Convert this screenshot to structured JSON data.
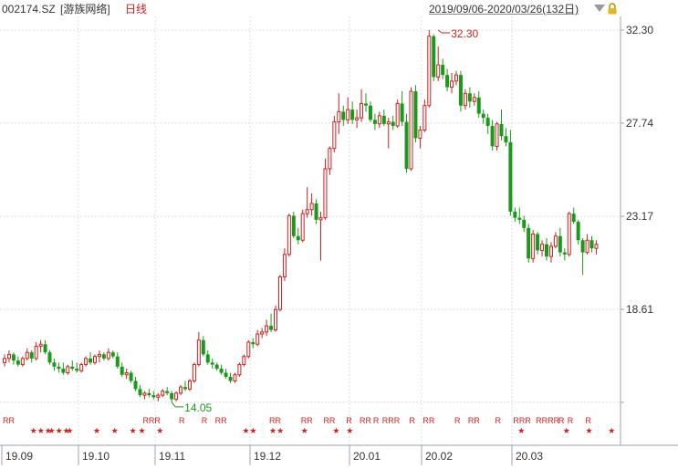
{
  "header": {
    "code": "002174.SZ",
    "name": "[游族网络]",
    "period": "日线",
    "range": "2019/09/06-2020/03/26(132日)",
    "icons": [
      "dropdown-triangle-icon",
      "lock-icon"
    ]
  },
  "chart_data": {
    "type": "candlestick",
    "ytick_labels": [
      "32.30",
      "27.74",
      "23.17",
      "18.61"
    ],
    "ylim": [
      13.2,
      33.0
    ],
    "grid": true,
    "xtick_labels": [
      {
        "label": "19.09",
        "index": 0
      },
      {
        "label": "19.10",
        "index": 17
      },
      {
        "label": "19.11",
        "index": 34
      },
      {
        "label": "19.12",
        "index": 55
      },
      {
        "label": "20.01",
        "index": 77
      },
      {
        "label": "20.02",
        "index": 93
      },
      {
        "label": "20.03",
        "index": 113
      }
    ],
    "annotations": [
      {
        "text": "32.30",
        "index": 96,
        "value": 32.3,
        "kind": "high",
        "color": "#d02020"
      },
      {
        "text": "14.05",
        "index": 37,
        "value": 14.05,
        "kind": "low",
        "color": "#1a9a1a"
      }
    ],
    "colors": {
      "up": "#d02020",
      "down": "#1a9a1a",
      "grid": "#d8dde4",
      "axis_text": "#333333",
      "marker": "#d02020"
    },
    "ohlc": [
      [
        16.0,
        16.4,
        15.8,
        16.2
      ],
      [
        16.2,
        16.6,
        16.0,
        16.4
      ],
      [
        16.4,
        16.5,
        15.9,
        16.1
      ],
      [
        16.1,
        16.3,
        15.8,
        15.9
      ],
      [
        15.9,
        16.3,
        15.8,
        16.2
      ],
      [
        16.2,
        16.7,
        16.1,
        16.5
      ],
      [
        16.5,
        16.6,
        16.0,
        16.2
      ],
      [
        16.2,
        17.0,
        16.1,
        16.8
      ],
      [
        16.8,
        17.1,
        16.5,
        16.9
      ],
      [
        16.9,
        17.1,
        16.4,
        16.5
      ],
      [
        16.5,
        16.6,
        15.9,
        16.0
      ],
      [
        16.0,
        16.2,
        15.6,
        15.8
      ],
      [
        15.8,
        16.0,
        15.5,
        15.7
      ],
      [
        15.7,
        16.0,
        15.4,
        15.5
      ],
      [
        15.5,
        15.9,
        15.4,
        15.8
      ],
      [
        15.8,
        16.1,
        15.6,
        15.7
      ],
      [
        15.7,
        16.0,
        15.5,
        15.6
      ],
      [
        15.6,
        16.0,
        15.5,
        15.9
      ],
      [
        15.9,
        16.3,
        15.8,
        16.2
      ],
      [
        16.2,
        16.5,
        15.9,
        16.0
      ],
      [
        16.0,
        16.4,
        15.9,
        16.3
      ],
      [
        16.3,
        16.6,
        16.0,
        16.4
      ],
      [
        16.4,
        16.5,
        16.1,
        16.2
      ],
      [
        16.2,
        16.7,
        16.1,
        16.5
      ],
      [
        16.5,
        16.6,
        16.2,
        16.3
      ],
      [
        16.3,
        16.5,
        15.7,
        15.8
      ],
      [
        15.8,
        16.0,
        15.3,
        15.4
      ],
      [
        15.4,
        15.7,
        15.2,
        15.5
      ],
      [
        15.5,
        15.6,
        15.0,
        15.1
      ],
      [
        15.1,
        15.3,
        14.6,
        14.7
      ],
      [
        14.7,
        14.9,
        14.3,
        14.4
      ],
      [
        14.4,
        14.6,
        14.2,
        14.5
      ],
      [
        14.5,
        14.7,
        14.3,
        14.4
      ],
      [
        14.4,
        14.6,
        14.2,
        14.3
      ],
      [
        14.3,
        14.5,
        14.1,
        14.4
      ],
      [
        14.4,
        14.7,
        14.3,
        14.6
      ],
      [
        14.6,
        14.8,
        14.4,
        14.5
      ],
      [
        14.5,
        14.6,
        14.05,
        14.2
      ],
      [
        14.2,
        14.6,
        14.1,
        14.5
      ],
      [
        14.5,
        14.9,
        14.4,
        14.8
      ],
      [
        14.8,
        15.1,
        14.6,
        14.7
      ],
      [
        14.7,
        15.2,
        14.6,
        15.1
      ],
      [
        15.1,
        16.0,
        15.0,
        15.9
      ],
      [
        15.9,
        17.5,
        15.8,
        17.1
      ],
      [
        17.1,
        17.3,
        16.3,
        16.4
      ],
      [
        16.4,
        16.6,
        15.9,
        16.0
      ],
      [
        16.0,
        16.2,
        15.7,
        15.9
      ],
      [
        15.9,
        16.0,
        15.6,
        15.7
      ],
      [
        15.7,
        15.9,
        15.4,
        15.5
      ],
      [
        15.5,
        15.7,
        15.2,
        15.3
      ],
      [
        15.3,
        15.5,
        15.0,
        15.1
      ],
      [
        15.1,
        15.5,
        15.0,
        15.4
      ],
      [
        15.4,
        16.0,
        15.3,
        15.9
      ],
      [
        15.9,
        16.4,
        15.8,
        16.3
      ],
      [
        16.3,
        17.1,
        16.2,
        17.0
      ],
      [
        17.0,
        17.2,
        16.7,
        16.9
      ],
      [
        16.9,
        17.6,
        16.8,
        17.4
      ],
      [
        17.4,
        17.7,
        17.2,
        17.5
      ],
      [
        17.5,
        18.1,
        17.3,
        17.8
      ],
      [
        17.8,
        18.4,
        17.5,
        17.6
      ],
      [
        17.6,
        18.8,
        17.5,
        18.6
      ],
      [
        18.6,
        20.3,
        18.5,
        20.2
      ],
      [
        20.2,
        21.6,
        20.0,
        21.3
      ],
      [
        21.3,
        23.3,
        21.2,
        23.2
      ],
      [
        23.2,
        23.4,
        22.1,
        22.2
      ],
      [
        22.2,
        22.6,
        21.8,
        22.0
      ],
      [
        22.0,
        23.5,
        21.9,
        23.3
      ],
      [
        23.3,
        24.6,
        23.1,
        23.5
      ],
      [
        23.5,
        24.3,
        23.2,
        23.8
      ],
      [
        23.8,
        24.0,
        22.8,
        23.0
      ],
      [
        23.0,
        23.4,
        21.0,
        23.1
      ],
      [
        23.1,
        26.0,
        23.0,
        25.5
      ],
      [
        25.5,
        26.6,
        25.2,
        26.5
      ],
      [
        26.5,
        28.1,
        26.3,
        27.8
      ],
      [
        27.8,
        29.2,
        27.2,
        28.3
      ],
      [
        28.3,
        28.6,
        27.6,
        27.9
      ],
      [
        27.9,
        29.0,
        27.7,
        28.4
      ],
      [
        28.4,
        28.8,
        27.7,
        27.9
      ],
      [
        27.9,
        28.4,
        27.5,
        28.0
      ],
      [
        28.0,
        29.4,
        27.8,
        28.7
      ],
      [
        28.7,
        29.2,
        28.3,
        28.6
      ],
      [
        28.6,
        28.8,
        27.8,
        27.9
      ],
      [
        27.9,
        28.2,
        27.4,
        27.7
      ],
      [
        27.7,
        28.3,
        27.5,
        28.1
      ],
      [
        28.1,
        28.4,
        27.6,
        27.7
      ],
      [
        27.7,
        28.0,
        26.5,
        27.8
      ],
      [
        27.8,
        28.1,
        27.4,
        27.6
      ],
      [
        27.6,
        28.9,
        27.5,
        28.7
      ],
      [
        28.7,
        29.3,
        27.6,
        27.8
      ],
      [
        27.8,
        28.2,
        25.3,
        25.5
      ],
      [
        25.5,
        29.5,
        25.4,
        29.3
      ],
      [
        29.3,
        29.6,
        26.8,
        27.0
      ],
      [
        27.0,
        27.6,
        26.5,
        27.4
      ],
      [
        27.4,
        28.9,
        27.3,
        28.6
      ],
      [
        28.6,
        32.3,
        28.5,
        32.0
      ],
      [
        32.0,
        32.1,
        29.8,
        30.0
      ],
      [
        30.0,
        31.5,
        29.8,
        30.6
      ],
      [
        30.6,
        30.9,
        29.9,
        30.1
      ],
      [
        30.1,
        30.4,
        29.3,
        29.5
      ],
      [
        29.5,
        30.2,
        29.2,
        29.8
      ],
      [
        29.8,
        30.3,
        29.6,
        30.1
      ],
      [
        30.1,
        30.3,
        28.3,
        28.6
      ],
      [
        28.6,
        29.4,
        28.4,
        29.2
      ],
      [
        29.2,
        29.5,
        28.5,
        28.8
      ],
      [
        28.8,
        29.2,
        28.6,
        29.0
      ],
      [
        29.0,
        29.3,
        28.0,
        28.2
      ],
      [
        28.2,
        28.4,
        27.7,
        28.0
      ],
      [
        28.0,
        28.2,
        27.2,
        27.6
      ],
      [
        27.6,
        27.9,
        26.4,
        26.6
      ],
      [
        26.6,
        27.8,
        26.4,
        27.7
      ],
      [
        27.7,
        28.4,
        26.9,
        27.1
      ],
      [
        27.1,
        27.5,
        26.6,
        26.8
      ],
      [
        26.8,
        27.4,
        23.2,
        23.4
      ],
      [
        23.4,
        23.6,
        22.9,
        23.1
      ],
      [
        23.1,
        23.6,
        22.8,
        23.0
      ],
      [
        23.0,
        23.2,
        22.4,
        22.6
      ],
      [
        22.6,
        22.8,
        20.9,
        21.1
      ],
      [
        21.1,
        22.5,
        20.9,
        22.3
      ],
      [
        22.3,
        22.4,
        21.3,
        21.5
      ],
      [
        21.5,
        22.0,
        21.2,
        21.8
      ],
      [
        21.8,
        22.1,
        21.0,
        21.2
      ],
      [
        21.2,
        21.9,
        20.9,
        21.7
      ],
      [
        21.7,
        22.4,
        21.6,
        22.2
      ],
      [
        22.2,
        22.6,
        21.2,
        21.4
      ],
      [
        21.4,
        21.6,
        21.0,
        21.3
      ],
      [
        21.3,
        23.4,
        21.2,
        23.3
      ],
      [
        23.3,
        23.6,
        22.8,
        22.9
      ],
      [
        22.9,
        23.0,
        21.8,
        22.0
      ],
      [
        22.0,
        22.1,
        20.3,
        21.4
      ],
      [
        21.4,
        22.3,
        21.3,
        22.0
      ],
      [
        22.0,
        22.2,
        21.4,
        21.6
      ],
      [
        21.6,
        22.0,
        21.3,
        21.8
      ]
    ],
    "signals": [
      {
        "label": "RR",
        "index": 0,
        "row": "r"
      },
      {
        "label": "RRR",
        "index": 31,
        "row": "r"
      },
      {
        "label": "R",
        "index": 39,
        "row": "r"
      },
      {
        "label": "R",
        "index": 44,
        "row": "r"
      },
      {
        "label": "RR",
        "index": 47,
        "row": "r"
      },
      {
        "label": "RR",
        "index": 59,
        "row": "r"
      },
      {
        "label": "RR",
        "index": 66,
        "row": "r"
      },
      {
        "label": "RR",
        "index": 71,
        "row": "r"
      },
      {
        "label": "R",
        "index": 76,
        "row": "r"
      },
      {
        "label": "RR",
        "index": 79,
        "row": "r"
      },
      {
        "label": "R",
        "index": 82,
        "row": "r"
      },
      {
        "label": "RRR",
        "index": 84,
        "row": "r"
      },
      {
        "label": "R",
        "index": 90,
        "row": "r"
      },
      {
        "label": "RR",
        "index": 93,
        "row": "r"
      },
      {
        "label": "R",
        "index": 100,
        "row": "r"
      },
      {
        "label": "RR",
        "index": 103,
        "row": "r"
      },
      {
        "label": "R",
        "index": 109,
        "row": "r"
      },
      {
        "label": "RRR",
        "index": 113,
        "row": "r"
      },
      {
        "label": "RRRR",
        "index": 118,
        "row": "r"
      },
      {
        "label": "R",
        "index": 123,
        "row": "r"
      },
      {
        "label": "R",
        "index": 125,
        "row": "r"
      },
      {
        "label": "R",
        "index": 129,
        "row": "r"
      },
      {
        "label": "★★★",
        "index": 6,
        "row": "s"
      },
      {
        "label": "★★★",
        "index": 10,
        "row": "s"
      },
      {
        "label": "★",
        "index": 14,
        "row": "s"
      },
      {
        "label": "★",
        "index": 20,
        "row": "s"
      },
      {
        "label": "★",
        "index": 24,
        "row": "s"
      },
      {
        "label": "★",
        "index": 28,
        "row": "s"
      },
      {
        "label": "★",
        "index": 30,
        "row": "s"
      },
      {
        "label": "★",
        "index": 34,
        "row": "s"
      },
      {
        "label": "★★",
        "index": 53,
        "row": "s"
      },
      {
        "label": "★★",
        "index": 59,
        "row": "s"
      },
      {
        "label": "★",
        "index": 66,
        "row": "s"
      },
      {
        "label": "★",
        "index": 73,
        "row": "s"
      },
      {
        "label": "★",
        "index": 76,
        "row": "s"
      },
      {
        "label": "★",
        "index": 114,
        "row": "s"
      },
      {
        "label": "★",
        "index": 124,
        "row": "s"
      },
      {
        "label": "★",
        "index": 129,
        "row": "s"
      },
      {
        "label": "★",
        "index": 134,
        "row": "s"
      }
    ]
  }
}
